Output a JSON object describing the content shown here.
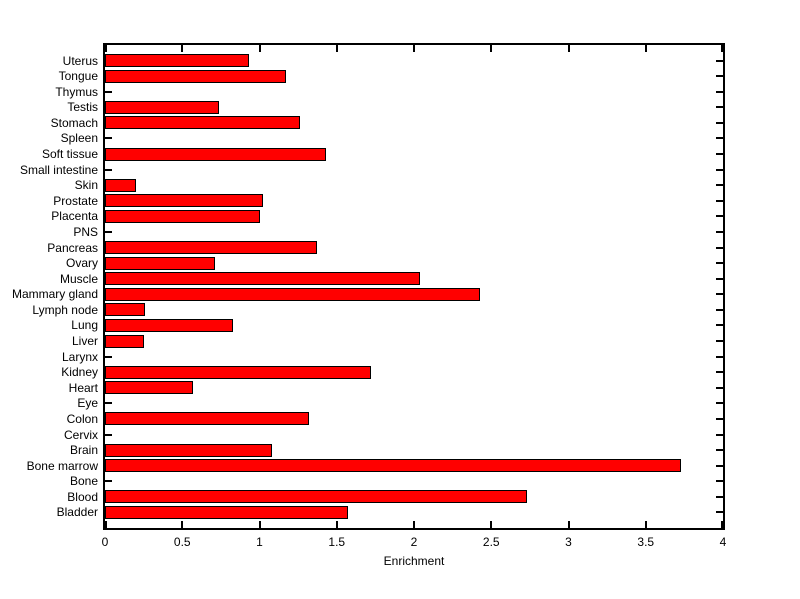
{
  "chart_data": {
    "type": "bar",
    "orientation": "horizontal",
    "title": "",
    "xlabel": "Enrichment",
    "ylabel": "",
    "xlim": [
      0,
      4
    ],
    "x_ticks": [
      0,
      0.5,
      1,
      1.5,
      2,
      2.5,
      3,
      3.5,
      4
    ],
    "x_tick_labels": [
      "0",
      "0.5",
      "1",
      "1.5",
      "2",
      "2.5",
      "3",
      "3.5",
      "4"
    ],
    "categories": [
      "Uterus",
      "Tongue",
      "Thymus",
      "Testis",
      "Stomach",
      "Spleen",
      "Soft tissue",
      "Small intestine",
      "Skin",
      "Prostate",
      "Placenta",
      "PNS",
      "Pancreas",
      "Ovary",
      "Muscle",
      "Mammary gland",
      "Lymph node",
      "Lung",
      "Liver",
      "Larynx",
      "Kidney",
      "Heart",
      "Eye",
      "Colon",
      "Cervix",
      "Brain",
      "Bone marrow",
      "Bone",
      "Blood",
      "Bladder"
    ],
    "values": [
      0.93,
      1.17,
      0,
      0.74,
      1.26,
      0,
      1.43,
      0,
      0.2,
      1.02,
      1.0,
      0,
      1.37,
      0.71,
      2.04,
      2.43,
      0.26,
      0.83,
      0.25,
      0,
      1.72,
      0.57,
      0,
      1.32,
      0,
      1.08,
      3.73,
      0,
      2.73,
      1.57
    ],
    "bar_color": "#ff0000",
    "bar_edge_color": "#000000",
    "axis_color": "#000000",
    "background_color": "#ffffff",
    "grid": false,
    "box": true,
    "tick_direction": "in",
    "legend": null
  }
}
